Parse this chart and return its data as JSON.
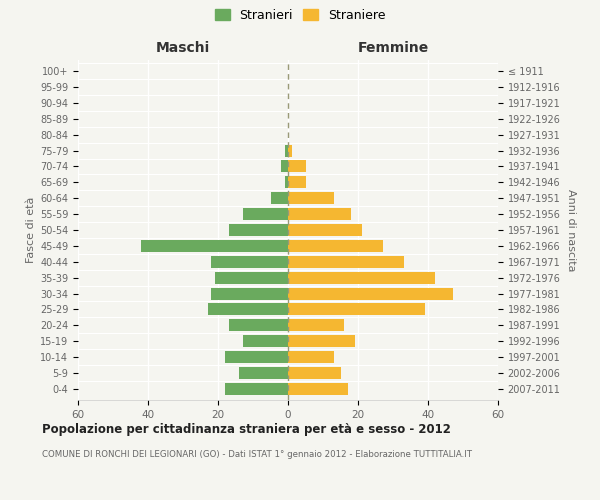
{
  "age_groups": [
    "0-4",
    "5-9",
    "10-14",
    "15-19",
    "20-24",
    "25-29",
    "30-34",
    "35-39",
    "40-44",
    "45-49",
    "50-54",
    "55-59",
    "60-64",
    "65-69",
    "70-74",
    "75-79",
    "80-84",
    "85-89",
    "90-94",
    "95-99",
    "100+"
  ],
  "birth_years": [
    "2007-2011",
    "2002-2006",
    "1997-2001",
    "1992-1996",
    "1987-1991",
    "1982-1986",
    "1977-1981",
    "1972-1976",
    "1967-1971",
    "1962-1966",
    "1957-1961",
    "1952-1956",
    "1947-1951",
    "1942-1946",
    "1937-1941",
    "1932-1936",
    "1927-1931",
    "1922-1926",
    "1917-1921",
    "1912-1916",
    "≤ 1911"
  ],
  "maschi": [
    18,
    14,
    18,
    13,
    17,
    23,
    22,
    21,
    22,
    42,
    17,
    13,
    5,
    1,
    2,
    1,
    0,
    0,
    0,
    0,
    0
  ],
  "femmine": [
    17,
    15,
    13,
    19,
    16,
    39,
    47,
    42,
    33,
    27,
    21,
    18,
    13,
    5,
    5,
    1,
    0,
    0,
    0,
    0,
    0
  ],
  "color_maschi": "#6aaa5e",
  "color_femmine": "#f5b731",
  "title": "Popolazione per cittadinanza straniera per età e sesso - 2012",
  "subtitle": "COMUNE DI RONCHI DEI LEGIONARI (GO) - Dati ISTAT 1° gennaio 2012 - Elaborazione TUTTITALIA.IT",
  "label_left": "Maschi",
  "label_right": "Femmine",
  "ylabel_left": "Fasce di età",
  "ylabel_right": "Anni di nascita",
  "legend_maschi": "Stranieri",
  "legend_femmine": "Straniere",
  "xlim": 60,
  "background_color": "#f5f5f0",
  "grid_color": "#ffffff",
  "spine_color": "#cccccc"
}
